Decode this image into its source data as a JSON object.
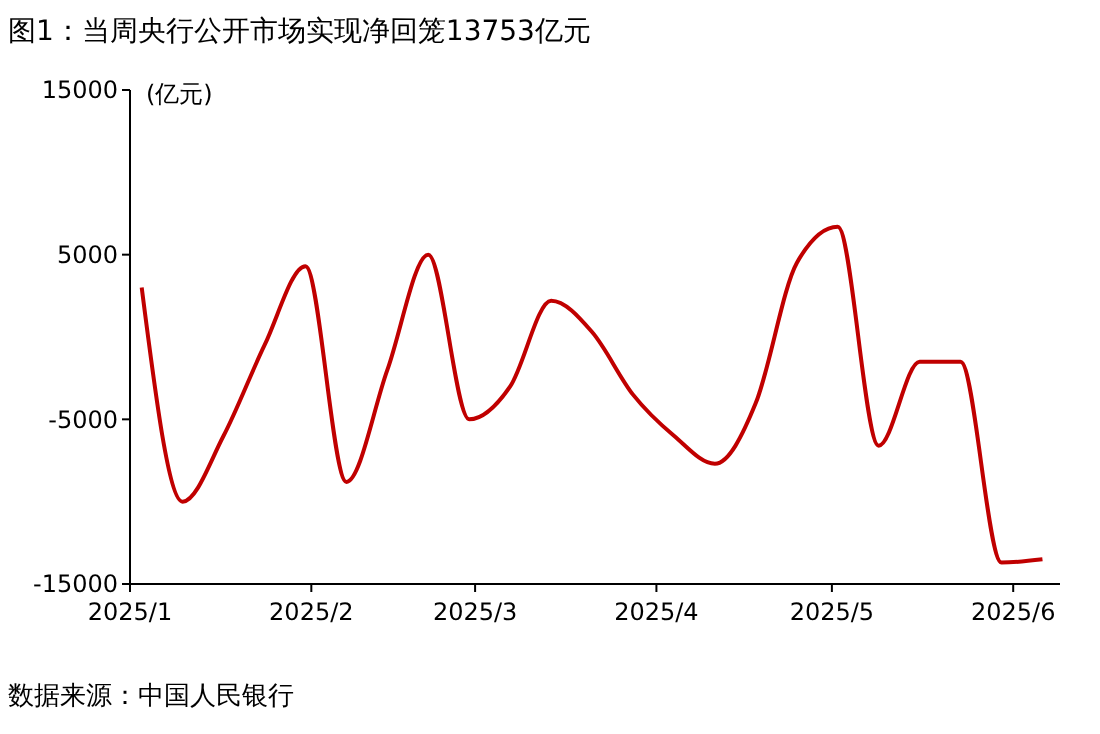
{
  "chart_data": {
    "type": "line",
    "title": "图1：当周央行公开市场实现净回笼13753亿元",
    "ylabel": "(亿元)",
    "annotations": [
      "数据来源：中国人民银行"
    ],
    "x": [
      "2025-01-03",
      "2025-01-10",
      "2025-01-17",
      "2025-01-24",
      "2025-01-31",
      "2025-02-07",
      "2025-02-14",
      "2025-02-21",
      "2025-02-28",
      "2025-03-07",
      "2025-03-14",
      "2025-03-21",
      "2025-03-28",
      "2025-04-04",
      "2025-04-11",
      "2025-04-18",
      "2025-04-25",
      "2025-05-02",
      "2025-05-09",
      "2025-05-16",
      "2025-05-23",
      "2025-05-30",
      "2025-06-06"
    ],
    "series": [
      {
        "color": "#c00000",
        "values": [
          3000,
          -10000,
          -6000,
          -500,
          4300,
          -8800,
          -2000,
          5000,
          -5000,
          -3000,
          2200,
          300,
          -3500,
          -6000,
          -7700,
          -4000,
          4500,
          6700,
          -6600,
          -1500,
          -1500,
          -13700,
          -13500
        ]
      }
    ],
    "xlim": [
      "2025-01-01",
      "2025-06-09"
    ],
    "xticks": [
      {
        "value": "2025-01-01",
        "label": "2025/1"
      },
      {
        "value": "2025-02-01",
        "label": "2025/2"
      },
      {
        "value": "2025-03-01",
        "label": "2025/3"
      },
      {
        "value": "2025-04-01",
        "label": "2025/4"
      },
      {
        "value": "2025-05-01",
        "label": "2025/5"
      },
      {
        "value": "2025-06-01",
        "label": "2025/6"
      }
    ],
    "ylim": [
      -15000,
      15000
    ],
    "yticks": [
      -15000,
      -5000,
      5000,
      15000
    ],
    "grid": false,
    "marker": "none",
    "line_style": "solid"
  }
}
